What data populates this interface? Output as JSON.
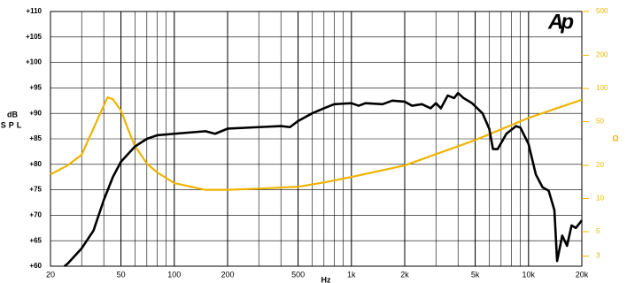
{
  "chart_data": {
    "type": "line",
    "logo": "Ap",
    "xlabel": "Hz",
    "ylabel": [
      "dB",
      "SPL"
    ],
    "y2label": "Ω",
    "xscale": "log",
    "y2scale": "log",
    "grid": true,
    "xlim": [
      20,
      20000
    ],
    "xticks": [
      20,
      50,
      100,
      200,
      500,
      {
        "value": 1000,
        "label": "1k"
      },
      {
        "value": 2000,
        "label": "2k"
      },
      {
        "value": 5000,
        "label": "5k"
      },
      {
        "value": 10000,
        "label": "10k"
      },
      {
        "value": 20000,
        "label": "20k"
      }
    ],
    "ylim": [
      60,
      110
    ],
    "yticks": [
      {
        "value": 60,
        "label": "+60"
      },
      {
        "value": 65,
        "label": "+65"
      },
      {
        "value": 70,
        "label": "+70"
      },
      {
        "value": 75,
        "label": "+75"
      },
      {
        "value": 80,
        "label": "+80"
      },
      {
        "value": 85,
        "label": "+85"
      },
      {
        "value": 90,
        "label": "+90"
      },
      {
        "value": 95,
        "label": "+95"
      },
      {
        "value": 100,
        "label": "+100"
      },
      {
        "value": 105,
        "label": "+105"
      },
      {
        "value": 110,
        "label": "+110"
      }
    ],
    "y2lim": [
      2.43,
      500
    ],
    "y2ticks": [
      500,
      200,
      100,
      50,
      20,
      10,
      5,
      3
    ],
    "series": [
      {
        "color": "#000000",
        "axis": "y",
        "x": [
          24,
          25,
          30,
          35,
          40,
          45,
          50,
          60,
          70,
          80,
          100,
          150,
          170,
          200,
          300,
          400,
          450,
          500,
          600,
          700,
          800,
          1000,
          1100,
          1200,
          1500,
          1700,
          2000,
          2200,
          2500,
          2800,
          3000,
          3200,
          3500,
          3800,
          4000,
          4300,
          4800,
          5500,
          6000,
          6300,
          6700,
          7500,
          8500,
          9000,
          10000,
          11000,
          12000,
          13000,
          14000,
          14500,
          15500,
          16500,
          17500,
          18500,
          20000
        ],
        "values": [
          60,
          60.5,
          63.5,
          67,
          73,
          77.5,
          80.5,
          83.5,
          85,
          85.7,
          86,
          86.5,
          86,
          87,
          87.3,
          87.5,
          87.3,
          88.5,
          90,
          91,
          91.8,
          92,
          91.5,
          92,
          91.8,
          92.5,
          92.3,
          91.5,
          91.8,
          91,
          92,
          91,
          93.5,
          93,
          94,
          93,
          92,
          90,
          87,
          83,
          83,
          86,
          87.5,
          87.2,
          84,
          78,
          75.5,
          74.8,
          71,
          61,
          66,
          64,
          68,
          67.5,
          69
        ]
      },
      {
        "color": "#f0b400",
        "axis": "y2",
        "x": [
          20,
          25,
          30,
          35,
          40,
          42,
          45,
          50,
          55,
          60,
          70,
          80,
          100,
          150,
          200,
          300,
          500,
          700,
          1000,
          2000,
          5000,
          10000,
          20000
        ],
        "values": [
          16.6,
          20,
          25,
          43.5,
          70,
          83,
          80,
          63,
          42,
          30,
          20.8,
          17.3,
          13.8,
          12,
          12,
          12.3,
          12.8,
          14,
          15.7,
          20,
          34,
          54,
          79
        ]
      }
    ]
  }
}
